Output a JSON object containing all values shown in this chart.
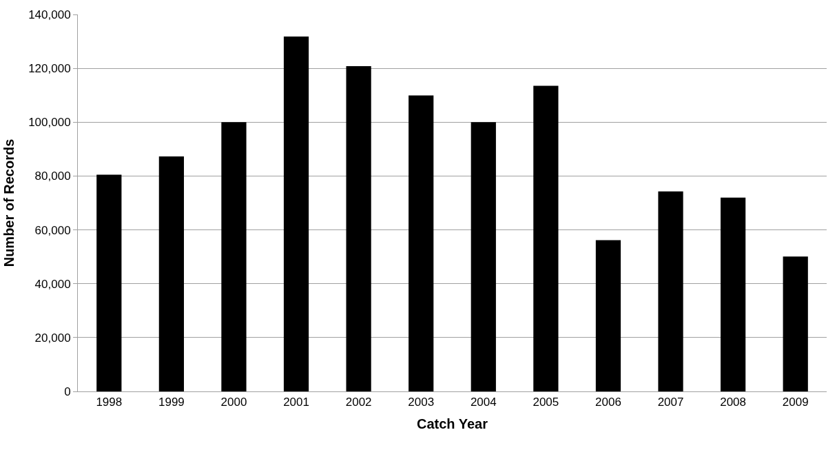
{
  "chart_data": {
    "type": "bar",
    "xlabel": "Catch Year",
    "ylabel": "Number of Records",
    "categories": [
      "1998",
      "1999",
      "2000",
      "2001",
      "2002",
      "2003",
      "2004",
      "2005",
      "2006",
      "2007",
      "2008",
      "2009"
    ],
    "values": [
      80500,
      87300,
      100000,
      131800,
      120800,
      109900,
      100000,
      113500,
      56200,
      74300,
      72000,
      50100
    ],
    "color": "#000000",
    "ylim": [
      0,
      140000
    ],
    "yticks": [
      {
        "value": 0,
        "label": "0"
      },
      {
        "value": 20000,
        "label": "20,000"
      },
      {
        "value": 40000,
        "label": "40,000"
      },
      {
        "value": 60000,
        "label": "60,000"
      },
      {
        "value": 80000,
        "label": "80,000"
      },
      {
        "value": 100000,
        "label": "100,000"
      },
      {
        "value": 120000,
        "label": "120,000"
      },
      {
        "value": 140000,
        "label": "140,000"
      }
    ],
    "grid": "y"
  }
}
